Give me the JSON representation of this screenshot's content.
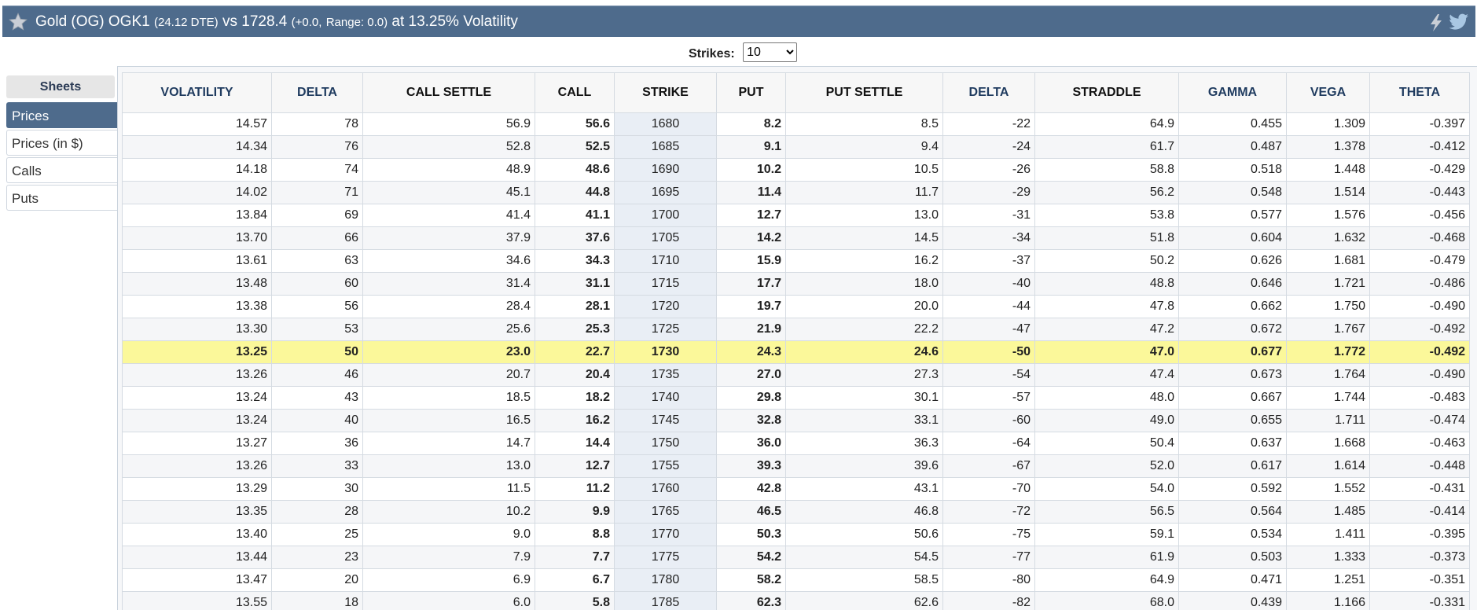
{
  "header": {
    "title_main": "Gold (OG) OGK1",
    "dte": "(24.12 DTE)",
    "vs_label": "vs 1728.4",
    "change": "(+0.0,",
    "range_label": "Range: 0.0)",
    "tail": "at 13.25% Volatility",
    "icons": [
      "star-icon",
      "lightning-icon",
      "twitter-bird-icon"
    ]
  },
  "strikes": {
    "label": "Strikes:",
    "value": "10"
  },
  "sidebar": {
    "title": "Sheets",
    "items": [
      {
        "label": "Prices",
        "active": true
      },
      {
        "label": "Prices (in $)",
        "active": false
      },
      {
        "label": "Calls",
        "active": false
      },
      {
        "label": "Puts",
        "active": false
      }
    ]
  },
  "table": {
    "columns": [
      "Volatility",
      "Delta",
      "Call Settle",
      "Call",
      "Strike",
      "Put",
      "Put Settle",
      "Delta",
      "Straddle",
      "Gamma",
      "Vega",
      "Theta"
    ],
    "highlight_strike": "1730",
    "highlight_color": "#fbf89a",
    "rows": [
      [
        "14.57",
        "78",
        "56.9",
        "56.6",
        "1680",
        "8.2",
        "8.5",
        "-22",
        "64.9",
        "0.455",
        "1.309",
        "-0.397"
      ],
      [
        "14.34",
        "76",
        "52.8",
        "52.5",
        "1685",
        "9.1",
        "9.4",
        "-24",
        "61.7",
        "0.487",
        "1.378",
        "-0.412"
      ],
      [
        "14.18",
        "74",
        "48.9",
        "48.6",
        "1690",
        "10.2",
        "10.5",
        "-26",
        "58.8",
        "0.518",
        "1.448",
        "-0.429"
      ],
      [
        "14.02",
        "71",
        "45.1",
        "44.8",
        "1695",
        "11.4",
        "11.7",
        "-29",
        "56.2",
        "0.548",
        "1.514",
        "-0.443"
      ],
      [
        "13.84",
        "69",
        "41.4",
        "41.1",
        "1700",
        "12.7",
        "13.0",
        "-31",
        "53.8",
        "0.577",
        "1.576",
        "-0.456"
      ],
      [
        "13.70",
        "66",
        "37.9",
        "37.6",
        "1705",
        "14.2",
        "14.5",
        "-34",
        "51.8",
        "0.604",
        "1.632",
        "-0.468"
      ],
      [
        "13.61",
        "63",
        "34.6",
        "34.3",
        "1710",
        "15.9",
        "16.2",
        "-37",
        "50.2",
        "0.626",
        "1.681",
        "-0.479"
      ],
      [
        "13.48",
        "60",
        "31.4",
        "31.1",
        "1715",
        "17.7",
        "18.0",
        "-40",
        "48.8",
        "0.646",
        "1.721",
        "-0.486"
      ],
      [
        "13.38",
        "56",
        "28.4",
        "28.1",
        "1720",
        "19.7",
        "20.0",
        "-44",
        "47.8",
        "0.662",
        "1.750",
        "-0.490"
      ],
      [
        "13.30",
        "53",
        "25.6",
        "25.3",
        "1725",
        "21.9",
        "22.2",
        "-47",
        "47.2",
        "0.672",
        "1.767",
        "-0.492"
      ],
      [
        "13.25",
        "50",
        "23.0",
        "22.7",
        "1730",
        "24.3",
        "24.6",
        "-50",
        "47.0",
        "0.677",
        "1.772",
        "-0.492"
      ],
      [
        "13.26",
        "46",
        "20.7",
        "20.4",
        "1735",
        "27.0",
        "27.3",
        "-54",
        "47.4",
        "0.673",
        "1.764",
        "-0.490"
      ],
      [
        "13.24",
        "43",
        "18.5",
        "18.2",
        "1740",
        "29.8",
        "30.1",
        "-57",
        "48.0",
        "0.667",
        "1.744",
        "-0.483"
      ],
      [
        "13.24",
        "40",
        "16.5",
        "16.2",
        "1745",
        "32.8",
        "33.1",
        "-60",
        "49.0",
        "0.655",
        "1.711",
        "-0.474"
      ],
      [
        "13.27",
        "36",
        "14.7",
        "14.4",
        "1750",
        "36.0",
        "36.3",
        "-64",
        "50.4",
        "0.637",
        "1.668",
        "-0.463"
      ],
      [
        "13.26",
        "33",
        "13.0",
        "12.7",
        "1755",
        "39.3",
        "39.6",
        "-67",
        "52.0",
        "0.617",
        "1.614",
        "-0.448"
      ],
      [
        "13.29",
        "30",
        "11.5",
        "11.2",
        "1760",
        "42.8",
        "43.1",
        "-70",
        "54.0",
        "0.592",
        "1.552",
        "-0.431"
      ],
      [
        "13.35",
        "28",
        "10.2",
        "9.9",
        "1765",
        "46.5",
        "46.8",
        "-72",
        "56.5",
        "0.564",
        "1.485",
        "-0.414"
      ],
      [
        "13.40",
        "25",
        "9.0",
        "8.8",
        "1770",
        "50.3",
        "50.6",
        "-75",
        "59.1",
        "0.534",
        "1.411",
        "-0.395"
      ],
      [
        "13.44",
        "23",
        "7.9",
        "7.7",
        "1775",
        "54.2",
        "54.5",
        "-77",
        "61.9",
        "0.503",
        "1.333",
        "-0.373"
      ],
      [
        "13.47",
        "20",
        "6.9",
        "6.7",
        "1780",
        "58.2",
        "58.5",
        "-80",
        "64.9",
        "0.471",
        "1.251",
        "-0.351"
      ],
      [
        "13.55",
        "18",
        "6.0",
        "5.8",
        "1785",
        "62.3",
        "62.6",
        "-82",
        "68.0",
        "0.439",
        "1.166",
        "-0.331"
      ]
    ]
  }
}
